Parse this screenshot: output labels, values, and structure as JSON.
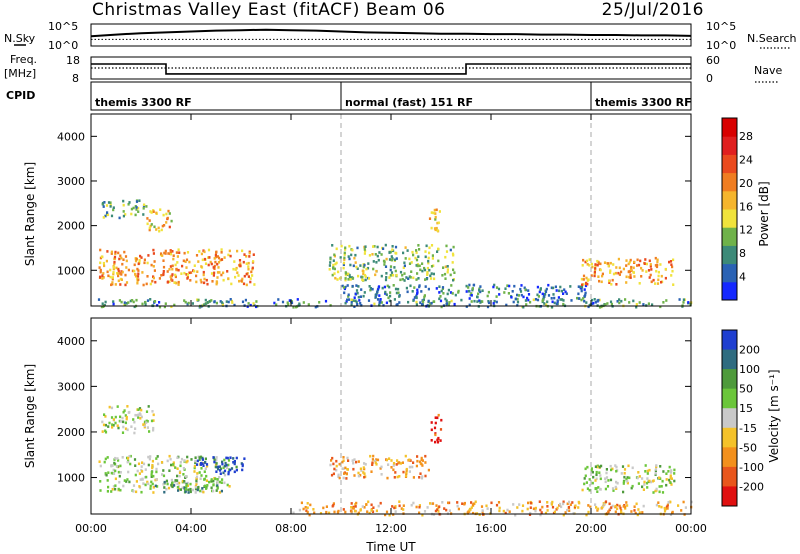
{
  "title": {
    "main": "Christmas Valley East (fitACF)",
    "beam": "Beam 06",
    "date": "25/Jul/2016"
  },
  "panels": {
    "nsky": {
      "left_label": "N.Sky",
      "right_label": "N.Search",
      "tick_hi": "10^5",
      "tick_lo": "10^0",
      "nsky_values": [
        2.2,
        2.6,
        2.9,
        3.1,
        3.3,
        3.5,
        3.6,
        3.7,
        3.6,
        3.5,
        3.3,
        3.1,
        3.0,
        2.9,
        2.8,
        2.8,
        2.7,
        2.7,
        2.6,
        2.6,
        2.5,
        2.5,
        2.4,
        2.4,
        2.3
      ],
      "log_range": [
        0,
        5
      ]
    },
    "freq": {
      "left_label_1": "Freq.",
      "left_label_2": "[MHz]",
      "right_label": "Nave",
      "left_ticks": [
        "18",
        "8"
      ],
      "right_ticks": [
        "60",
        "0"
      ],
      "freq_mhz": [
        {
          "t0": 0,
          "t1": 3,
          "v": 14.8
        },
        {
          "t0": 3,
          "t1": 15,
          "v": 10.3
        },
        {
          "t0": 15,
          "t1": 24,
          "v": 14.8
        }
      ],
      "nave_level": 0.5,
      "freq_range": [
        8,
        18
      ]
    },
    "cpid": {
      "label": "CPID",
      "segments": [
        {
          "t0": 0,
          "t1": 10,
          "label": "themis 3300 RF"
        },
        {
          "t0": 10,
          "t1": 20,
          "label": "normal (fast) 151 RF"
        },
        {
          "t0": 20,
          "t1": 24,
          "label": "themis 3300 RF"
        }
      ]
    }
  },
  "chart_data": [
    {
      "type": "heatmap",
      "name": "power",
      "ylabel": "Slant Range [km]",
      "xlabel": "Time UT",
      "x_range_hours": [
        0,
        24
      ],
      "ylim": [
        200,
        4500
      ],
      "y_ticks": [
        1000,
        2000,
        3000,
        4000
      ],
      "x_tick_labels": [
        "00:00",
        "04:00",
        "08:00",
        "12:00",
        "16:00",
        "20:00",
        "00:00"
      ],
      "colorbar": {
        "label": "Power [dB]",
        "ticks": [
          "4",
          "8",
          "12",
          "16",
          "20",
          "24",
          "28"
        ],
        "colors": [
          "#1428ff",
          "#2a62b4",
          "#3c8a78",
          "#6fb24a",
          "#f0e33c",
          "#f5b52d",
          "#f07d21",
          "#ea4a1e",
          "#e01f1f",
          "#d80000"
        ]
      },
      "scatter_regions": [
        {
          "t0": 0.3,
          "t1": 6.5,
          "r0": 700,
          "r1": 1500,
          "level": 0.62
        },
        {
          "t0": 2.2,
          "t1": 3.2,
          "r0": 1900,
          "r1": 2400,
          "level": 0.55
        },
        {
          "t0": 0.4,
          "t1": 2.2,
          "r0": 2200,
          "r1": 2600,
          "level": 0.3
        },
        {
          "t0": 9.5,
          "t1": 14.5,
          "r0": 800,
          "r1": 1600,
          "level": 0.35
        },
        {
          "t0": 10,
          "t1": 20,
          "r0": 300,
          "r1": 700,
          "level": 0.2
        },
        {
          "t0": 13.5,
          "t1": 14,
          "r0": 1800,
          "r1": 2400,
          "level": 0.5
        },
        {
          "t0": 19.5,
          "t1": 23.3,
          "r0": 700,
          "r1": 1300,
          "level": 0.6
        },
        {
          "t0": 0.2,
          "t1": 24,
          "r0": 200,
          "r1": 380,
          "level": 0.25
        }
      ]
    },
    {
      "type": "heatmap",
      "name": "velocity",
      "ylabel": "Slant Range [km]",
      "xlabel": "Time UT",
      "x_range_hours": [
        0,
        24
      ],
      "ylim": [
        200,
        4500
      ],
      "y_ticks": [
        1000,
        2000,
        3000,
        4000
      ],
      "x_tick_labels": [
        "00:00",
        "04:00",
        "08:00",
        "12:00",
        "16:00",
        "20:00",
        "00:00"
      ],
      "colorbar": {
        "label": "Velocity [m s⁻¹]",
        "ticks": [
          "200",
          "100",
          "50",
          "15",
          "-15",
          "-50",
          "-100",
          "-200"
        ],
        "colors": [
          "#1f3fd0",
          "#2f6c80",
          "#4e9a3b",
          "#6bc63a",
          "#c9c9c9",
          "#f4c22a",
          "#f3901c",
          "#e8561c",
          "#e01010"
        ]
      },
      "scatter_regions": [
        {
          "t0": 0.3,
          "t1": 5.5,
          "r0": 700,
          "r1": 1500,
          "level": 0.45
        },
        {
          "t0": 4.2,
          "t1": 6.2,
          "r0": 1100,
          "r1": 1500,
          "level": 0.05
        },
        {
          "t0": 2.5,
          "t1": 5.5,
          "r0": 700,
          "r1": 1000,
          "level": 0.28
        },
        {
          "t0": 9.5,
          "t1": 13.5,
          "r0": 1000,
          "r1": 1500,
          "level": 0.66
        },
        {
          "t0": 8,
          "t1": 24,
          "r0": 200,
          "r1": 500,
          "level": 0.68
        },
        {
          "t0": 13.5,
          "t1": 14,
          "r0": 1800,
          "r1": 2400,
          "level": 0.9
        },
        {
          "t0": 19.5,
          "t1": 23.3,
          "r0": 700,
          "r1": 1300,
          "level": 0.45
        },
        {
          "t0": 0.4,
          "t1": 2.5,
          "r0": 2000,
          "r1": 2600,
          "level": 0.45
        }
      ]
    }
  ]
}
